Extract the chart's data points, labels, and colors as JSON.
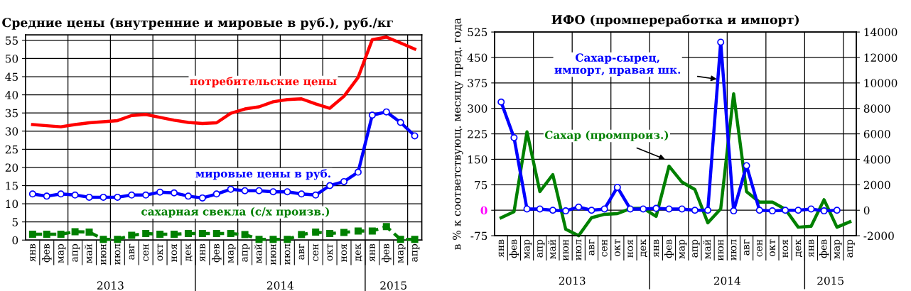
{
  "chart_data": [
    {
      "type": "line",
      "title": "Средние цены (внутренние и мировые в руб.), руб./кг",
      "categories": [
        "янв",
        "фев",
        "мар",
        "апр",
        "май",
        "июн",
        "июл",
        "авг",
        "сен",
        "окт",
        "ноя",
        "дек",
        "янв",
        "фев",
        "мар",
        "апр",
        "май",
        "июн",
        "июл",
        "авг",
        "сен",
        "окт",
        "ноя",
        "дек",
        "янв",
        "фев",
        "мар",
        "апр"
      ],
      "annotations": [
        "2013",
        "2014",
        "2015"
      ],
      "series": [
        {
          "name": "потребительские цены",
          "color": "#ff0000",
          "marker": "none",
          "line_style": "solid",
          "values": [
            31.8,
            31.5,
            31.2,
            31.8,
            32.3,
            32.6,
            32.9,
            34.3,
            34.6,
            33.8,
            33.0,
            32.4,
            32.1,
            32.3,
            34.9,
            36.1,
            36.7,
            38.1,
            38.7,
            38.9,
            37.5,
            36.3,
            39.6,
            44.8,
            55.2,
            55.9,
            54.3,
            52.6
          ]
        },
        {
          "name": "мировые цены в руб.",
          "color": "#0000ff",
          "marker": "circle",
          "line_style": "solid",
          "values": [
            12.7,
            12.1,
            12.7,
            12.4,
            11.8,
            11.8,
            11.8,
            12.4,
            12.4,
            13.2,
            13.0,
            12.1,
            11.6,
            12.7,
            14.0,
            13.6,
            13.6,
            13.3,
            13.3,
            12.7,
            12.4,
            15.0,
            16.1,
            18.7,
            34.4,
            35.3,
            32.4,
            28.7
          ]
        },
        {
          "name": "сахарная свекла (с/х произв.)",
          "color": "#008000",
          "marker": "square",
          "line_style": "dashed",
          "values": [
            1.6,
            1.6,
            1.6,
            2.3,
            2.2,
            0.2,
            0.2,
            1.3,
            1.8,
            1.6,
            1.6,
            1.8,
            1.8,
            1.8,
            1.8,
            1.5,
            0.2,
            0.2,
            0.2,
            1.5,
            2.2,
            1.8,
            2.1,
            2.5,
            2.5,
            3.7,
            0.2,
            0.2
          ]
        }
      ],
      "ylim": [
        0,
        56.5
      ],
      "yticks": [
        0,
        5,
        10,
        15,
        20,
        25,
        30,
        35,
        40,
        45,
        50,
        55
      ],
      "grid": true
    },
    {
      "type": "line",
      "title": "ИФО (промпереработка и импорт)",
      "ylabel": "в % к соответствующ. месяцу пред. года",
      "categories": [
        "янв",
        "фев",
        "мар",
        "апр",
        "май",
        "июн",
        "июл",
        "авг",
        "сен",
        "окт",
        "ноя",
        "дек",
        "янв",
        "фев",
        "мар",
        "апр",
        "май",
        "июн",
        "июл",
        "авг",
        "сен",
        "окт",
        "ноя",
        "дек",
        "янв",
        "фев",
        "мар",
        "апр"
      ],
      "annotations": [
        "2013",
        "2014",
        "2015"
      ],
      "series": [
        {
          "name": "Сахар (промпроиз.)",
          "color": "#008000",
          "marker": "none",
          "line_style": "solid",
          "values": [
            -22,
            -4,
            231,
            55,
            105,
            -56,
            -75,
            -22,
            -12,
            -10,
            5,
            6,
            -18,
            130,
            83,
            61,
            -37,
            4,
            343,
            55,
            24,
            24,
            3,
            -50,
            -47,
            31,
            -50,
            -34
          ]
        },
        {
          "name": "Сахар-сырец, импорт, правая шк.",
          "color": "#0000ff",
          "marker": "circle",
          "line_style": "solid",
          "axis": "y2",
          "values": [
            8500,
            5700,
            100,
            100,
            0,
            -50,
            250,
            0,
            100,
            1800,
            100,
            100,
            150,
            100,
            100,
            0,
            0,
            13200,
            -50,
            3500,
            0,
            -50,
            0,
            0,
            100,
            -50,
            0,
            null
          ]
        }
      ],
      "ylim": [
        -75,
        525
      ],
      "yticks": [
        -75,
        {
          "value": 0,
          "label": "0"
        },
        75,
        150,
        225,
        300,
        375,
        450,
        525
      ],
      "y2lim": [
        -2000,
        14000
      ],
      "y2ticks": [
        -2000,
        0,
        2000,
        4000,
        6000,
        8000,
        10000,
        12000,
        14000
      ],
      "grid": true
    }
  ]
}
